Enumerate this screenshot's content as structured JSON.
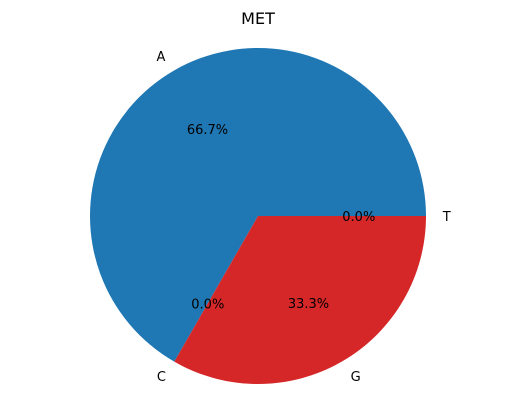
{
  "chart_data": {
    "type": "pie",
    "title": "MET",
    "labels": [
      "A",
      "C",
      "G",
      "T"
    ],
    "values": [
      66.7,
      0.0,
      33.3,
      0.0
    ],
    "percent_labels": [
      "66.7%",
      "0.0%",
      "33.3%",
      "0.0%"
    ],
    "colors": [
      "#1f77b4",
      "#ff7f0e",
      "#d62728",
      "#2ca02c"
    ],
    "start_angle_deg": 0,
    "direction": "counterclockwise"
  }
}
